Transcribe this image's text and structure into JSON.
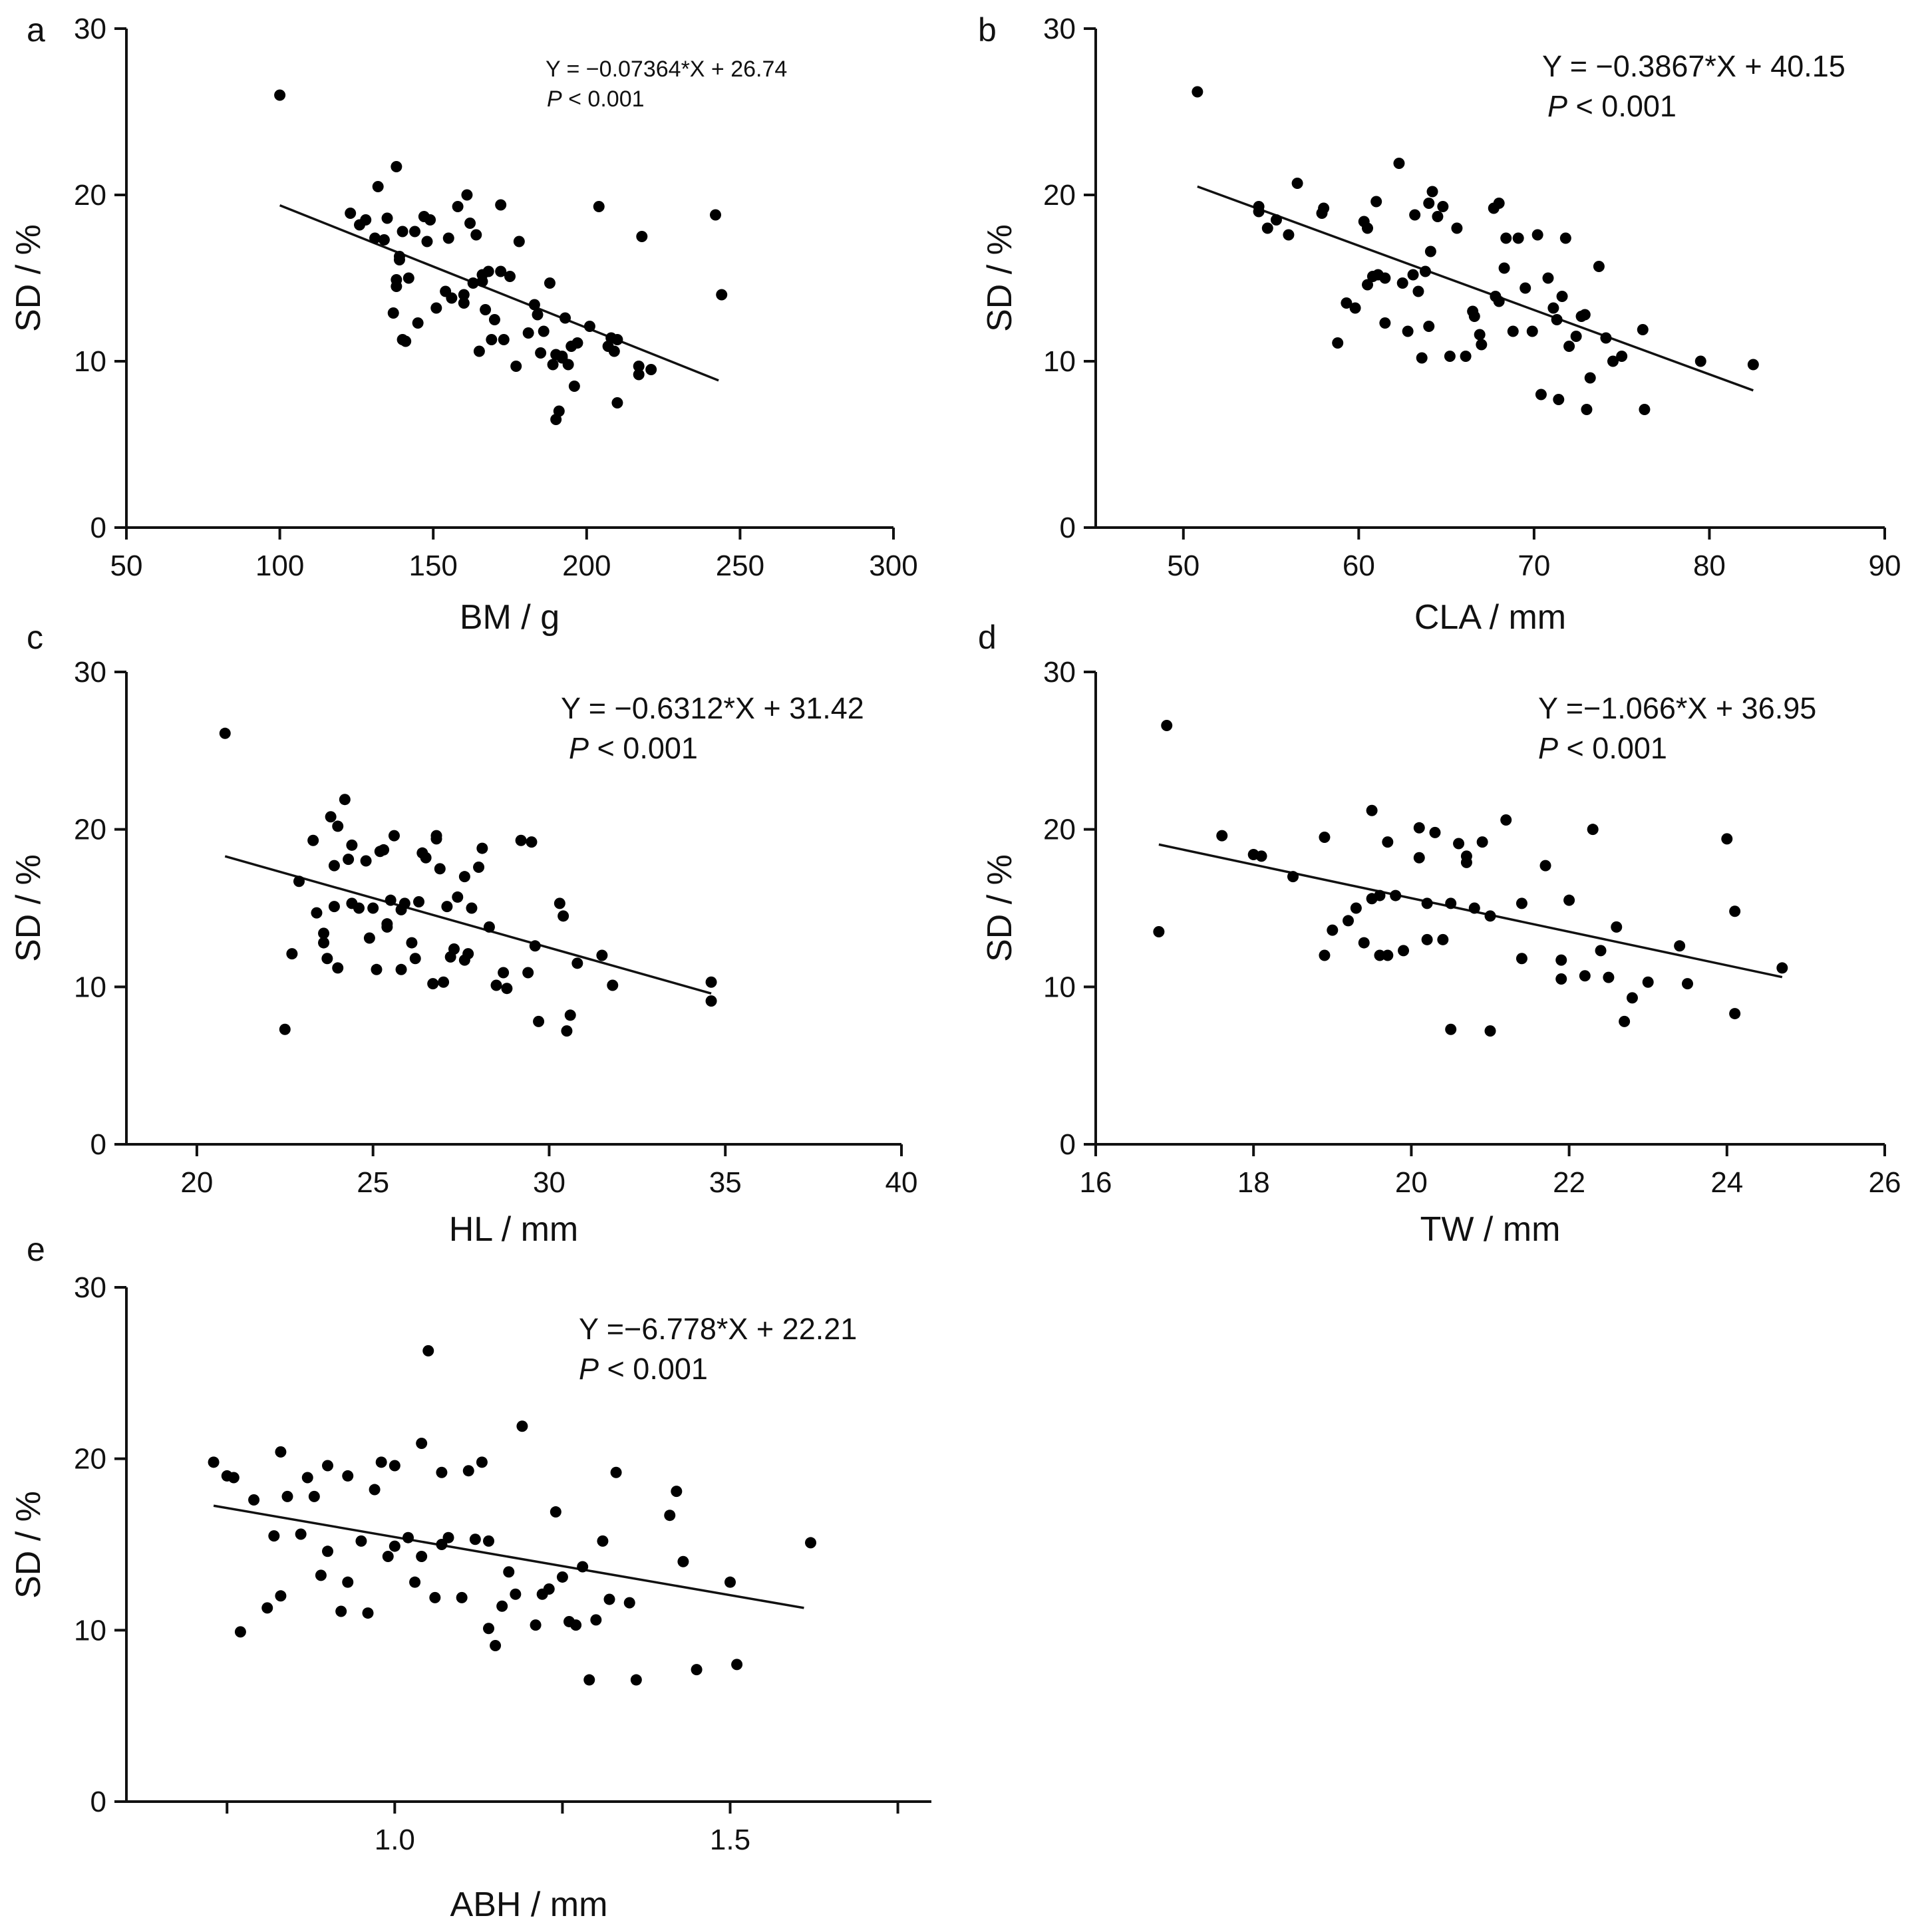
{
  "chart_data": [
    {
      "type": "scatter",
      "panel_label": "a",
      "xlabel": "BM / g",
      "ylabel": "SD / %",
      "xlim": [
        50,
        300
      ],
      "ylim": [
        0,
        30
      ],
      "xticks": [
        "50",
        "100",
        "150",
        "200",
        "250",
        "300"
      ],
      "yticks": [
        "0",
        "10",
        "20",
        "30"
      ],
      "equation": "Y = −0.07364*X + 26.74",
      "p_prefix": "P",
      "p_value": " < 0.001",
      "fit": {
        "slope": -0.07364,
        "intercept": 26.74,
        "x_from": 100,
        "x_to": 243
      },
      "x": [
        100,
        123,
        126,
        128,
        131,
        132,
        134,
        135,
        137,
        138,
        138,
        138,
        139,
        139,
        140,
        140,
        141,
        142,
        144,
        145,
        147,
        148,
        149,
        151,
        154,
        155,
        156,
        158,
        160,
        160,
        161,
        162,
        163,
        164,
        165,
        166,
        166,
        167,
        168,
        169,
        170,
        172,
        172,
        173,
        175,
        177,
        178,
        181,
        183,
        184,
        185,
        186,
        188,
        189,
        190,
        190,
        191,
        192,
        192,
        193,
        194,
        195,
        196,
        197,
        201,
        204,
        207,
        208,
        209,
        210,
        210,
        217,
        217,
        218,
        221,
        242,
        244
      ],
      "y": [
        26,
        18.9,
        18.2,
        18.5,
        17.4,
        20.5,
        17.3,
        18.6,
        12.9,
        14.5,
        14.9,
        21.7,
        16.3,
        16.1,
        11.3,
        17.8,
        11.2,
        15,
        17.8,
        12.3,
        18.7,
        17.2,
        18.5,
        13.2,
        14.2,
        17.4,
        13.8,
        19.3,
        14,
        13.5,
        20,
        18.3,
        14.7,
        17.6,
        10.6,
        14.8,
        15.2,
        13.1,
        15.4,
        11.3,
        12.5,
        15.4,
        19.4,
        11.3,
        15.1,
        9.7,
        17.2,
        11.7,
        13.4,
        12.8,
        10.5,
        11.8,
        14.7,
        9.8,
        10.4,
        6.5,
        7,
        10.2,
        10.3,
        12.6,
        9.8,
        10.9,
        8.5,
        11.1,
        12.1,
        19.3,
        10.9,
        11.4,
        10.6,
        7.5,
        11.3,
        9.2,
        9.7,
        17.5,
        9.5,
        18.8,
        14
      ]
    },
    {
      "type": "scatter",
      "panel_label": "b",
      "xlabel": "CLA / mm",
      "ylabel": "SD / %",
      "xlim": [
        45,
        90
      ],
      "ylim": [
        0,
        30
      ],
      "xticks": [
        "50",
        "60",
        "70",
        "80",
        "90"
      ],
      "yticks": [
        "0",
        "10",
        "20",
        "30"
      ],
      "equation": "Y = −0.3867*X + 40.15",
      "p_prefix": "P",
      "p_value": " < 0.001",
      "fit": {
        "slope": -0.3867,
        "intercept": 40.15,
        "x_from": 50.8,
        "x_to": 82.5
      },
      "x": [
        50.8,
        54.3,
        54.3,
        54.8,
        55.3,
        56,
        56.5,
        57.9,
        58,
        58.8,
        59.3,
        59.8,
        60.3,
        60.5,
        60.5,
        60.8,
        61,
        61.1,
        61.5,
        61.5,
        62.3,
        62.5,
        62.8,
        63.1,
        63.2,
        63.4,
        63.6,
        63.8,
        64,
        64.1,
        64,
        64.2,
        64.5,
        64.8,
        65.2,
        65.6,
        66.1,
        66.5,
        66.6,
        66.9,
        67,
        67.7,
        67.8,
        68,
        68,
        68.3,
        68.4,
        68.8,
        69.1,
        69.5,
        69.9,
        70.2,
        70.4,
        70.8,
        71.1,
        71.3,
        71.4,
        71.6,
        71.8,
        72,
        72.4,
        72.7,
        72.9,
        73,
        73.2,
        73.7,
        74.1,
        74.5,
        75,
        76.2,
        76.3,
        79.5,
        82.5
      ],
      "y": [
        26.2,
        19.3,
        19,
        18,
        18.5,
        17.6,
        20.7,
        18.9,
        19.2,
        11.1,
        13.5,
        13.2,
        18.4,
        18,
        14.6,
        15.1,
        19.6,
        15.2,
        12.3,
        15,
        21.9,
        14.7,
        11.8,
        15.2,
        18.8,
        14.2,
        10.2,
        15.4,
        19.5,
        16.6,
        12.1,
        20.2,
        18.7,
        19.3,
        10.3,
        18,
        10.3,
        13,
        12.7,
        11.6,
        11,
        19.2,
        13.9,
        13.6,
        19.5,
        15.6,
        17.4,
        11.8,
        17.4,
        14.4,
        11.8,
        17.6,
        8,
        15,
        13.2,
        12.5,
        7.7,
        13.9,
        17.4,
        10.9,
        11.5,
        12.7,
        12.8,
        7.1,
        9,
        15.7,
        11.4,
        10,
        10.3,
        11.9,
        7.1,
        10,
        9.8
      ]
    },
    {
      "type": "scatter",
      "panel_label": "c",
      "xlabel": "HL / mm",
      "ylabel": "SD / %",
      "xlim": [
        18,
        40
      ],
      "ylim": [
        0,
        30
      ],
      "xticks": [
        "20",
        "25",
        "30",
        "35",
        "40"
      ],
      "yticks": [
        "0",
        "10",
        "20",
        "30"
      ],
      "equation": "Y = −0.6312*X + 31.42",
      "p_prefix": "P",
      "p_value": " < 0.001",
      "fit": {
        "slope": -0.6312,
        "intercept": 31.42,
        "x_from": 20.8,
        "x_to": 34.6
      },
      "x": [
        20.8,
        22.5,
        22.7,
        22.9,
        23.3,
        23.4,
        23.6,
        23.6,
        23.7,
        23.8,
        23.9,
        23.9,
        24,
        24,
        24.2,
        24.3,
        24.4,
        24.4,
        24.6,
        24.8,
        24.9,
        25,
        25.1,
        25.2,
        25.3,
        25.4,
        25.4,
        25.5,
        25.6,
        25.8,
        25.8,
        25.9,
        26.1,
        26.2,
        26.3,
        26.4,
        26.5,
        26.7,
        26.8,
        26.8,
        26.9,
        27,
        27.1,
        27.2,
        27.3,
        27.4,
        27.6,
        27.6,
        27.7,
        27.8,
        28,
        28.1,
        28.3,
        28.5,
        28.7,
        28.8,
        29.2,
        29.4,
        29.5,
        29.6,
        29.7,
        30.3,
        30.4,
        30.5,
        30.6,
        30.8,
        31.5,
        31.8,
        34.6,
        34.6
      ],
      "y": [
        26.1,
        7.3,
        12.1,
        16.7,
        19.3,
        14.7,
        12.8,
        13.4,
        11.8,
        20.8,
        17.7,
        15.1,
        20.2,
        11.2,
        21.9,
        18.1,
        15.3,
        19,
        15,
        18,
        13.1,
        15,
        11.1,
        18.6,
        18.7,
        13.8,
        14,
        15.5,
        19.6,
        14.9,
        11.1,
        15.3,
        12.8,
        11.8,
        15.4,
        18.5,
        18.2,
        10.2,
        19.6,
        19.4,
        17.5,
        10.3,
        15.1,
        11.9,
        12.4,
        15.7,
        11.7,
        17,
        12.1,
        15,
        17.6,
        18.8,
        13.8,
        10.1,
        10.9,
        9.9,
        19.3,
        10.9,
        19.2,
        12.6,
        7.8,
        15.3,
        14.5,
        7.2,
        8.2,
        11.5,
        12,
        10.1,
        10.3,
        9.1
      ]
    },
    {
      "type": "scatter",
      "panel_label": "d",
      "xlabel": "TW / mm",
      "ylabel": "SD / %",
      "xlim": [
        16,
        26
      ],
      "ylim": [
        0,
        30
      ],
      "xticks": [
        "16",
        "18",
        "20",
        "22",
        "24",
        "26"
      ],
      "yticks": [
        "0",
        "10",
        "20",
        "30"
      ],
      "equation": "Y =−1.066*X + 36.95",
      "p_prefix": "P",
      "p_value": " < 0.001",
      "fit": {
        "slope": -1.066,
        "intercept": 36.95,
        "x_from": 16.8,
        "x_to": 24.7
      },
      "x": [
        16.8,
        16.9,
        17.6,
        18,
        18.1,
        18.5,
        18.9,
        18.9,
        19,
        19.2,
        19.3,
        19.4,
        19.5,
        19.5,
        19.6,
        19.6,
        19.7,
        19.7,
        19.8,
        19.9,
        20.1,
        20.1,
        20.2,
        20.2,
        20.3,
        20.4,
        20.5,
        20.5,
        20.6,
        20.7,
        20.7,
        20.8,
        20.9,
        21,
        21,
        21.2,
        21.4,
        21.4,
        21.7,
        21.9,
        21.9,
        22,
        22.2,
        22.3,
        22.4,
        22.5,
        22.6,
        22.7,
        22.8,
        23,
        23.4,
        23.5,
        24,
        24.1,
        24.1,
        24.7
      ],
      "y": [
        13.5,
        26.6,
        19.6,
        18.4,
        18.3,
        17,
        12,
        19.5,
        13.6,
        14.2,
        15,
        12.8,
        21.2,
        15.6,
        15.8,
        12,
        19.2,
        12,
        15.8,
        12.3,
        20.1,
        18.2,
        15.3,
        13,
        19.8,
        13,
        15.3,
        7.3,
        19.1,
        18.3,
        17.9,
        15,
        19.2,
        14.5,
        7.2,
        20.6,
        15.3,
        11.8,
        17.7,
        11.7,
        10.5,
        15.5,
        10.7,
        20,
        12.3,
        10.6,
        13.8,
        7.8,
        9.3,
        10.3,
        12.6,
        10.2,
        19.4,
        14.8,
        8.3,
        11.2
      ]
    },
    {
      "type": "scatter",
      "panel_label": "e",
      "xlabel": "ABH / mm",
      "ylabel": "SD / %",
      "xlim": [
        0.6,
        1.8
      ],
      "ylim": [
        0,
        30
      ],
      "xticks": [
        "1.0",
        "1.5"
      ],
      "yticks": [
        "0",
        "10",
        "20",
        "30"
      ],
      "equation": "Y =−6.778*X + 22.21",
      "p_prefix": "P",
      "p_value": " < 0.001",
      "fit": {
        "slope": -6.778,
        "intercept": 22.21,
        "x_from": 0.73,
        "x_to": 1.61
      },
      "x": [
        0.73,
        0.75,
        0.76,
        0.77,
        0.79,
        0.81,
        0.82,
        0.83,
        0.83,
        0.84,
        0.86,
        0.87,
        0.88,
        0.89,
        0.9,
        0.9,
        0.92,
        0.93,
        0.93,
        0.95,
        0.96,
        0.97,
        0.98,
        0.99,
        1,
        1,
        1.02,
        1.03,
        1.04,
        1.04,
        1.05,
        1.06,
        1.07,
        1.07,
        1.08,
        1.1,
        1.11,
        1.12,
        1.13,
        1.14,
        1.14,
        1.15,
        1.16,
        1.17,
        1.18,
        1.19,
        1.21,
        1.22,
        1.23,
        1.24,
        1.25,
        1.26,
        1.27,
        1.28,
        1.29,
        1.3,
        1.31,
        1.32,
        1.33,
        1.35,
        1.36,
        1.41,
        1.42,
        1.43,
        1.45,
        1.5,
        1.51,
        1.62
      ],
      "y": [
        19.8,
        19,
        18.9,
        9.9,
        17.6,
        11.3,
        15.5,
        12,
        20.4,
        17.8,
        15.6,
        18.9,
        17.8,
        13.2,
        14.6,
        19.6,
        11.1,
        12.8,
        19,
        15.2,
        11,
        18.2,
        19.8,
        14.3,
        19.6,
        14.9,
        15.4,
        12.8,
        20.9,
        14.3,
        26.3,
        11.9,
        15,
        19.2,
        15.4,
        11.9,
        19.3,
        15.3,
        19.8,
        10.1,
        15.2,
        9.1,
        11.4,
        13.4,
        12.1,
        21.9,
        10.3,
        12.1,
        12.4,
        16.9,
        13.1,
        10.5,
        10.3,
        13.7,
        7.1,
        10.6,
        15.2,
        11.8,
        19.2,
        11.6,
        7.1,
        16.7,
        18.1,
        14,
        7.7,
        12.8,
        8,
        15.1
      ]
    }
  ]
}
